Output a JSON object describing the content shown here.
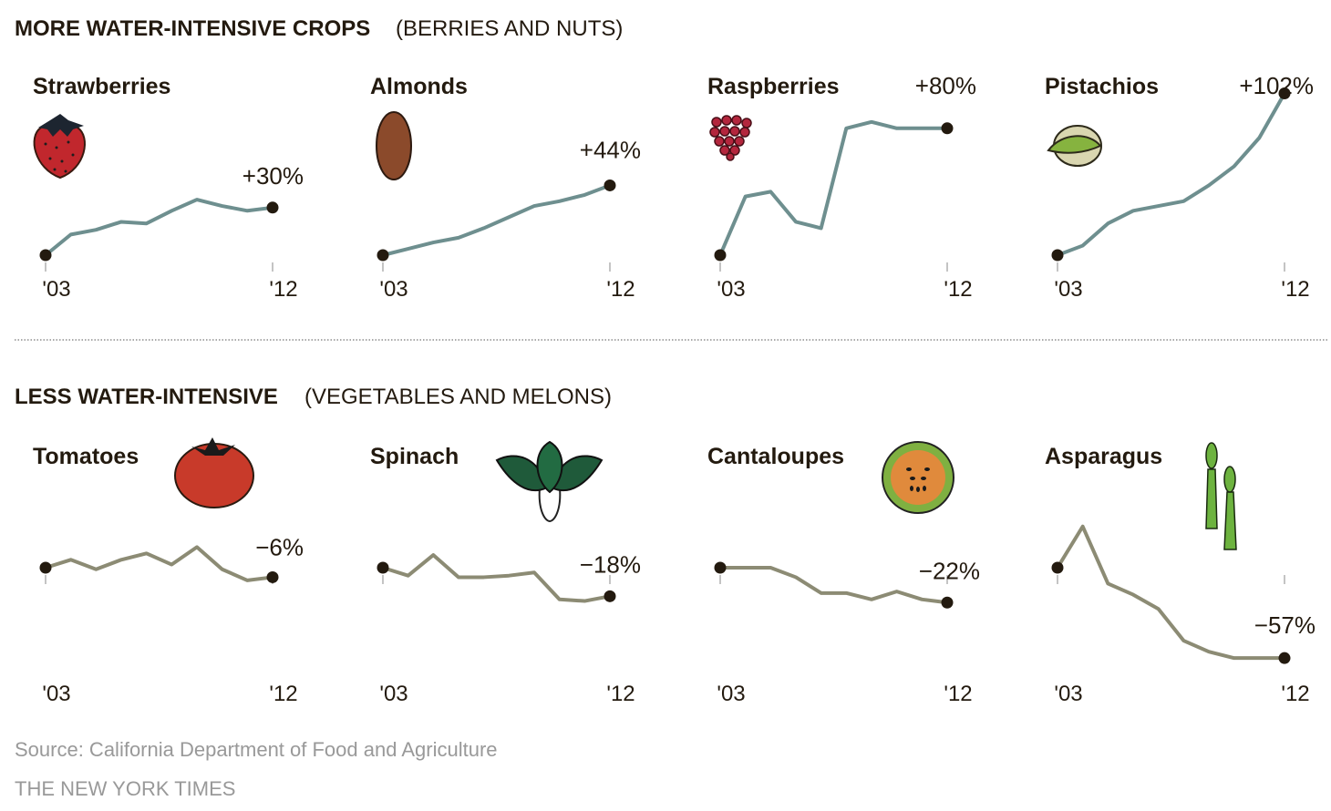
{
  "sections": [
    {
      "title": "MORE WATER-INTENSIVE CROPS",
      "subtitle": "(BERRIES AND NUTS)"
    },
    {
      "title": "LESS WATER-INTENSIVE",
      "subtitle": "(VEGETABLES AND MELONS)"
    }
  ],
  "source": "Source: California Department of Food and Agriculture",
  "credit": "THE NEW YORK TIMES",
  "colors": {
    "more_line": "#6e8f8f",
    "less_line": "#8c8b74",
    "dot": "#231a0f"
  },
  "chart_data": [
    {
      "type": "line",
      "title": "Strawberries",
      "icon": "strawberry-icon",
      "x": [
        "'03",
        "",
        "",
        "",
        "",
        "",
        "",
        "",
        "",
        "'12"
      ],
      "values": [
        0,
        13,
        16,
        21,
        20,
        28,
        35,
        31,
        28,
        30
      ],
      "end_label": "+30%"
    },
    {
      "type": "line",
      "title": "Almonds",
      "icon": "almond-icon",
      "x": [
        "'03",
        "",
        "",
        "",
        "",
        "",
        "",
        "",
        "",
        "'12"
      ],
      "values": [
        0,
        4,
        8,
        11,
        17,
        24,
        31,
        34,
        38,
        44
      ],
      "end_label": "+44%"
    },
    {
      "type": "line",
      "title": "Raspberries",
      "icon": "raspberry-icon",
      "x": [
        "'03",
        "",
        "",
        "",
        "",
        "",
        "",
        "",
        "",
        "'12"
      ],
      "values": [
        0,
        37,
        40,
        21,
        17,
        80,
        84,
        80,
        80,
        80
      ],
      "end_label": "+80%"
    },
    {
      "type": "line",
      "title": "Pistachios",
      "icon": "pistachio-icon",
      "x": [
        "'03",
        "",
        "",
        "",
        "",
        "",
        "",
        "",
        "",
        "'12"
      ],
      "values": [
        0,
        6,
        20,
        28,
        31,
        34,
        44,
        56,
        74,
        102
      ],
      "end_label": "+102%"
    },
    {
      "type": "line",
      "title": "Tomatoes",
      "icon": "tomato-icon",
      "x": [
        "'03",
        "",
        "",
        "",
        "",
        "",
        "",
        "",
        "",
        "'12"
      ],
      "values": [
        0,
        5,
        -1,
        5,
        9,
        2,
        13,
        -1,
        -8,
        -6
      ],
      "end_label": "−6%"
    },
    {
      "type": "line",
      "title": "Spinach",
      "icon": "spinach-icon",
      "x": [
        "'03",
        "",
        "",
        "",
        "",
        "",
        "",
        "",
        "",
        "'12"
      ],
      "values": [
        0,
        -5,
        8,
        -6,
        -6,
        -5,
        -3,
        -20,
        -21,
        -18
      ],
      "end_label": "−18%"
    },
    {
      "type": "line",
      "title": "Cantaloupes",
      "icon": "cantaloupe-icon",
      "x": [
        "'03",
        "",
        "",
        "",
        "",
        "",
        "",
        "",
        "",
        "'12"
      ],
      "values": [
        0,
        0,
        0,
        -6,
        -16,
        -16,
        -20,
        -15,
        -20,
        -22
      ],
      "end_label": "−22%"
    },
    {
      "type": "line",
      "title": "Asparagus",
      "icon": "asparagus-icon",
      "x": [
        "'03",
        "",
        "",
        "",
        "",
        "",
        "",
        "",
        "",
        "'12"
      ],
      "values": [
        0,
        26,
        -10,
        -17,
        -26,
        -46,
        -53,
        -57,
        -57,
        -57
      ],
      "end_label": "−57%"
    }
  ]
}
